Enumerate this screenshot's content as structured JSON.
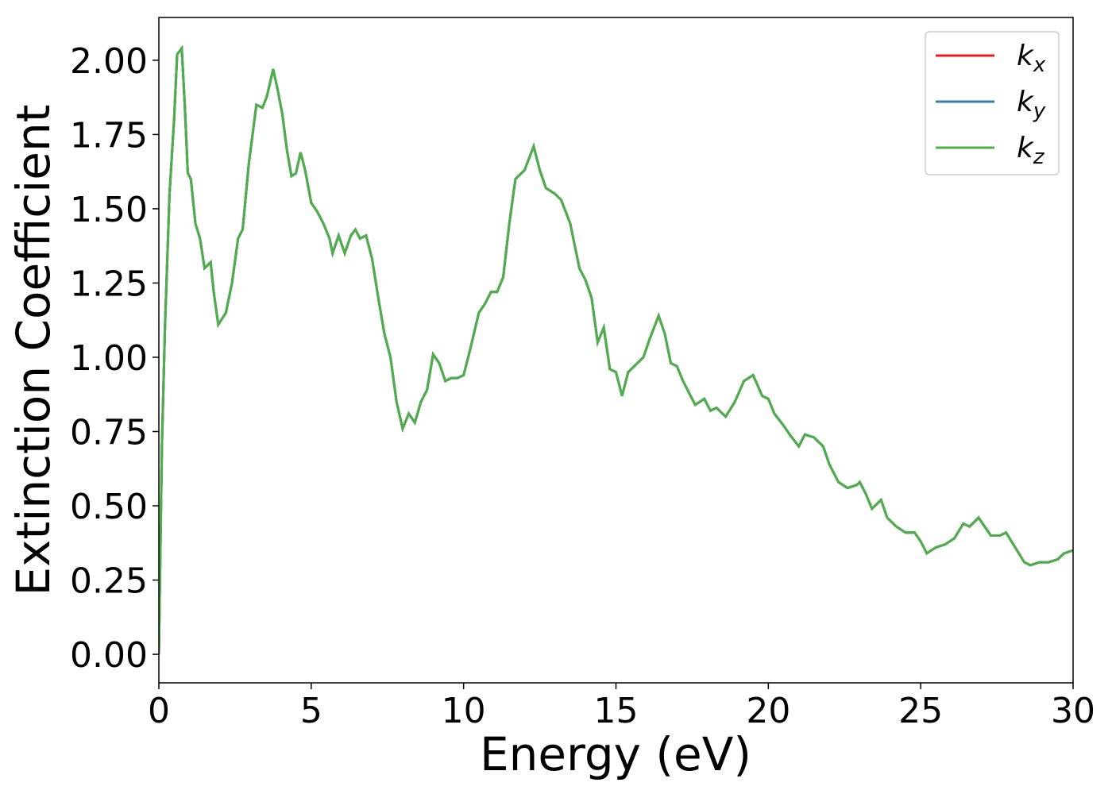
{
  "chart_data": {
    "type": "line",
    "xlabel": "Energy (eV)",
    "ylabel": "Extinction Coefficient",
    "x": [
      0,
      0.1,
      0.2,
      0.35,
      0.5,
      0.6,
      0.75,
      0.85,
      0.95,
      1.05,
      1.2,
      1.35,
      1.5,
      1.7,
      1.8,
      1.95,
      2.2,
      2.4,
      2.6,
      2.75,
      2.95,
      3.2,
      3.4,
      3.55,
      3.75,
      3.9,
      4.05,
      4.2,
      4.35,
      4.5,
      4.65,
      4.8,
      5.0,
      5.2,
      5.4,
      5.6,
      5.7,
      5.9,
      6.1,
      6.3,
      6.45,
      6.6,
      6.8,
      7.0,
      7.2,
      7.4,
      7.6,
      7.8,
      8.0,
      8.2,
      8.4,
      8.6,
      8.8,
      9.0,
      9.2,
      9.4,
      9.6,
      9.8,
      10.0,
      10.2,
      10.5,
      10.7,
      10.9,
      11.1,
      11.3,
      11.5,
      11.7,
      12.0,
      12.3,
      12.5,
      12.7,
      13.0,
      13.2,
      13.5,
      13.8,
      14.0,
      14.2,
      14.4,
      14.6,
      14.8,
      15.0,
      15.2,
      15.4,
      15.6,
      15.9,
      16.1,
      16.4,
      16.6,
      16.8,
      17.0,
      17.2,
      17.6,
      17.9,
      18.1,
      18.3,
      18.6,
      18.9,
      19.2,
      19.5,
      19.8,
      20.0,
      20.2,
      20.5,
      20.7,
      21.0,
      21.2,
      21.5,
      21.8,
      22.0,
      22.3,
      22.6,
      22.9,
      23.0,
      23.2,
      23.4,
      23.7,
      23.9,
      24.2,
      24.5,
      24.8,
      25.0,
      25.2,
      25.5,
      25.8,
      26.1,
      26.4,
      26.6,
      26.9,
      27.1,
      27.3,
      27.6,
      27.8,
      28.1,
      28.4,
      28.6,
      28.9,
      29.2,
      29.5,
      29.7,
      30.0
    ],
    "series": [
      {
        "name": "kx",
        "color": "#e41a1c",
        "values": [
          0,
          0.7,
          1.1,
          1.55,
          1.8,
          2.02,
          2.04,
          1.85,
          1.62,
          1.6,
          1.45,
          1.4,
          1.3,
          1.32,
          1.22,
          1.11,
          1.15,
          1.25,
          1.4,
          1.43,
          1.65,
          1.85,
          1.84,
          1.88,
          1.97,
          1.9,
          1.82,
          1.7,
          1.61,
          1.62,
          1.69,
          1.63,
          1.52,
          1.49,
          1.45,
          1.4,
          1.35,
          1.41,
          1.35,
          1.41,
          1.43,
          1.4,
          1.41,
          1.33,
          1.2,
          1.08,
          1.0,
          0.85,
          0.76,
          0.81,
          0.78,
          0.85,
          0.89,
          1.01,
          0.98,
          0.92,
          0.93,
          0.93,
          0.94,
          1.02,
          1.15,
          1.18,
          1.22,
          1.22,
          1.27,
          1.45,
          1.6,
          1.63,
          1.71,
          1.63,
          1.57,
          1.55,
          1.53,
          1.45,
          1.3,
          1.26,
          1.2,
          1.05,
          1.1,
          0.96,
          0.95,
          0.87,
          0.95,
          0.97,
          1.0,
          1.06,
          1.14,
          1.08,
          0.98,
          0.97,
          0.92,
          0.84,
          0.86,
          0.82,
          0.83,
          0.8,
          0.85,
          0.92,
          0.94,
          0.87,
          0.86,
          0.81,
          0.77,
          0.74,
          0.7,
          0.74,
          0.73,
          0.7,
          0.64,
          0.58,
          0.56,
          0.57,
          0.58,
          0.54,
          0.49,
          0.52,
          0.46,
          0.43,
          0.41,
          0.41,
          0.38,
          0.34,
          0.36,
          0.37,
          0.39,
          0.44,
          0.43,
          0.46,
          0.43,
          0.4,
          0.4,
          0.41,
          0.36,
          0.31,
          0.3,
          0.31,
          0.31,
          0.32,
          0.34,
          0.35
        ]
      },
      {
        "name": "ky",
        "color": "#377eb8",
        "values": [
          0,
          0.7,
          1.1,
          1.55,
          1.8,
          2.02,
          2.04,
          1.85,
          1.62,
          1.6,
          1.45,
          1.4,
          1.3,
          1.32,
          1.22,
          1.11,
          1.15,
          1.25,
          1.4,
          1.43,
          1.65,
          1.85,
          1.84,
          1.88,
          1.97,
          1.9,
          1.82,
          1.7,
          1.61,
          1.62,
          1.69,
          1.63,
          1.52,
          1.49,
          1.45,
          1.4,
          1.35,
          1.41,
          1.35,
          1.41,
          1.43,
          1.4,
          1.41,
          1.33,
          1.2,
          1.08,
          1.0,
          0.85,
          0.76,
          0.81,
          0.78,
          0.85,
          0.89,
          1.01,
          0.98,
          0.92,
          0.93,
          0.93,
          0.94,
          1.02,
          1.15,
          1.18,
          1.22,
          1.22,
          1.27,
          1.45,
          1.6,
          1.63,
          1.71,
          1.63,
          1.57,
          1.55,
          1.53,
          1.45,
          1.3,
          1.26,
          1.2,
          1.05,
          1.1,
          0.96,
          0.95,
          0.87,
          0.95,
          0.97,
          1.0,
          1.06,
          1.14,
          1.08,
          0.98,
          0.97,
          0.92,
          0.84,
          0.86,
          0.82,
          0.83,
          0.8,
          0.85,
          0.92,
          0.94,
          0.87,
          0.86,
          0.81,
          0.77,
          0.74,
          0.7,
          0.74,
          0.73,
          0.7,
          0.64,
          0.58,
          0.56,
          0.57,
          0.58,
          0.54,
          0.49,
          0.52,
          0.46,
          0.43,
          0.41,
          0.41,
          0.38,
          0.34,
          0.36,
          0.37,
          0.39,
          0.44,
          0.43,
          0.46,
          0.43,
          0.4,
          0.4,
          0.41,
          0.36,
          0.31,
          0.3,
          0.31,
          0.31,
          0.32,
          0.34,
          0.35
        ]
      },
      {
        "name": "kz",
        "color": "#4daf4a",
        "values": [
          0,
          0.7,
          1.1,
          1.55,
          1.8,
          2.02,
          2.04,
          1.85,
          1.62,
          1.6,
          1.45,
          1.4,
          1.3,
          1.32,
          1.22,
          1.11,
          1.15,
          1.25,
          1.4,
          1.43,
          1.65,
          1.85,
          1.84,
          1.88,
          1.97,
          1.9,
          1.82,
          1.7,
          1.61,
          1.62,
          1.69,
          1.63,
          1.52,
          1.49,
          1.45,
          1.4,
          1.35,
          1.41,
          1.35,
          1.41,
          1.43,
          1.4,
          1.41,
          1.33,
          1.2,
          1.08,
          1.0,
          0.85,
          0.76,
          0.81,
          0.78,
          0.85,
          0.89,
          1.01,
          0.98,
          0.92,
          0.93,
          0.93,
          0.94,
          1.02,
          1.15,
          1.18,
          1.22,
          1.22,
          1.27,
          1.45,
          1.6,
          1.63,
          1.71,
          1.63,
          1.57,
          1.55,
          1.53,
          1.45,
          1.3,
          1.26,
          1.2,
          1.05,
          1.1,
          0.96,
          0.95,
          0.87,
          0.95,
          0.97,
          1.0,
          1.06,
          1.14,
          1.08,
          0.98,
          0.97,
          0.92,
          0.84,
          0.86,
          0.82,
          0.83,
          0.8,
          0.85,
          0.92,
          0.94,
          0.87,
          0.86,
          0.81,
          0.77,
          0.74,
          0.7,
          0.74,
          0.73,
          0.7,
          0.64,
          0.58,
          0.56,
          0.57,
          0.58,
          0.54,
          0.49,
          0.52,
          0.46,
          0.43,
          0.41,
          0.41,
          0.38,
          0.34,
          0.36,
          0.37,
          0.39,
          0.44,
          0.43,
          0.46,
          0.43,
          0.4,
          0.4,
          0.41,
          0.36,
          0.31,
          0.3,
          0.31,
          0.31,
          0.32,
          0.34,
          0.35
        ]
      }
    ],
    "xlim": [
      0,
      30
    ],
    "xticks": [
      0,
      5,
      10,
      15,
      20,
      25,
      30
    ],
    "ylim": [
      -0.096,
      2.144
    ],
    "yticks": [
      {
        "value": 0,
        "label": "0.00"
      },
      {
        "value": 0.25,
        "label": "0.25"
      },
      {
        "value": 0.5,
        "label": "0.50"
      },
      {
        "value": 0.75,
        "label": "0.75"
      },
      {
        "value": 1,
        "label": "1.00"
      },
      {
        "value": 1.25,
        "label": "1.25"
      },
      {
        "value": 1.5,
        "label": "1.50"
      },
      {
        "value": 1.75,
        "label": "1.75"
      },
      {
        "value": 2,
        "label": "2.00"
      }
    ],
    "legend": "upper right"
  }
}
